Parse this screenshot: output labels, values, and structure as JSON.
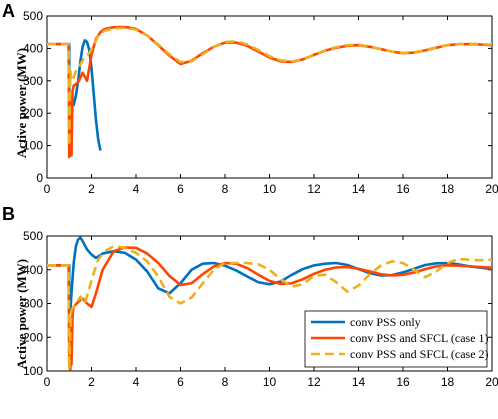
{
  "figure": {
    "panels": [
      "A",
      "B"
    ],
    "ylabel": "Active power (MW)"
  },
  "colors": {
    "conv_pss_only": "#0072BD",
    "conv_pss_sfcl_case1": "#FF4500",
    "conv_pss_sfcl_case2": "#EDB120"
  },
  "chart_data": [
    {
      "type": "line",
      "panel": "A",
      "title": "",
      "xlabel": "",
      "ylabel": "Active power (MW)",
      "xlim": [
        0,
        20
      ],
      "ylim": [
        0,
        500
      ],
      "xticks": [
        0,
        2,
        4,
        6,
        8,
        10,
        12,
        14,
        16,
        18,
        20
      ],
      "yticks": [
        0,
        100,
        200,
        300,
        400,
        500
      ],
      "grid": false,
      "legend": null,
      "series": [
        {
          "key": "conv_pss_only",
          "style": "solid",
          "x": [
            0,
            1.0,
            1.0,
            1.05,
            1.1,
            1.2,
            1.3,
            1.4,
            1.5,
            1.6,
            1.7,
            1.8,
            1.9,
            2.0,
            2.1,
            2.2,
            2.3,
            2.4
          ],
          "y": [
            413,
            413,
            100,
            240,
            225,
            225,
            255,
            300,
            360,
            405,
            425,
            420,
            395,
            340,
            260,
            180,
            120,
            85
          ]
        },
        {
          "key": "conv_pss_sfcl_case1",
          "style": "solid",
          "x": [
            0,
            0.97,
            1.0,
            1.02,
            1.05,
            1.08,
            1.1,
            1.15,
            1.2,
            1.4,
            1.6,
            1.8,
            2.0,
            2.2,
            2.4,
            2.6,
            2.8,
            3.0,
            3.3,
            3.6,
            4.0,
            4.5,
            5.0,
            5.5,
            6.0,
            6.5,
            7.0,
            7.5,
            8.0,
            8.5,
            9.0,
            9.5,
            10.0,
            10.5,
            11.0,
            11.5,
            12.0,
            12.5,
            13.0,
            13.5,
            14.0,
            14.5,
            15.0,
            15.5,
            16.0,
            16.5,
            17.0,
            17.5,
            18.0,
            18.5,
            19.0,
            19.5,
            20.0
          ],
          "y": [
            413,
            413,
            65,
            120,
            85,
            250,
            70,
            270,
            285,
            295,
            325,
            300,
            380,
            430,
            450,
            460,
            463,
            465,
            466,
            465,
            460,
            440,
            410,
            378,
            352,
            362,
            385,
            405,
            418,
            418,
            408,
            390,
            372,
            360,
            358,
            366,
            380,
            393,
            402,
            408,
            410,
            405,
            398,
            390,
            385,
            387,
            394,
            402,
            410,
            413,
            413,
            412,
            410
          ]
        },
        {
          "key": "conv_pss_sfcl_case2",
          "style": "dashed",
          "x": [
            0,
            0.97,
            1.0,
            1.05,
            1.1,
            1.2,
            1.3,
            1.5,
            1.7,
            1.9,
            2.1,
            2.3,
            2.6,
            3.0,
            3.5,
            4.0,
            4.5,
            5.0,
            5.5,
            6.0,
            6.5,
            7.0,
            7.5,
            8.0,
            8.5,
            9.0,
            9.5,
            10.0,
            10.5,
            11.0,
            11.5,
            12.0,
            12.5,
            13.0,
            13.5,
            14.0,
            14.5,
            15.0,
            15.5,
            16.0,
            16.5,
            17.0,
            17.5,
            18.0,
            18.5,
            19.0,
            19.5,
            20.0
          ],
          "y": [
            413,
            413,
            100,
            330,
            300,
            310,
            330,
            350,
            375,
            385,
            410,
            440,
            455,
            462,
            463,
            458,
            440,
            412,
            382,
            358,
            360,
            382,
            405,
            420,
            422,
            412,
            395,
            376,
            363,
            360,
            366,
            380,
            394,
            404,
            410,
            411,
            406,
            398,
            390,
            386,
            388,
            395,
            403,
            410,
            413,
            414,
            413,
            412
          ]
        }
      ]
    },
    {
      "type": "line",
      "panel": "B",
      "title": "",
      "xlabel": "",
      "ylabel": "Active power (MW)",
      "xlim": [
        0,
        20
      ],
      "ylim": [
        100,
        500
      ],
      "xticks": [
        0,
        2,
        4,
        6,
        8,
        10,
        12,
        14,
        16,
        18,
        20
      ],
      "yticks": [
        100,
        200,
        300,
        400,
        500
      ],
      "grid": false,
      "legend": {
        "placement": "bottom-right",
        "entries": [
          {
            "key": "conv_pss_only",
            "label": "conv PSS only"
          },
          {
            "key": "conv_pss_sfcl_case1",
            "label": "conv PSS and SFCL (case 1)"
          },
          {
            "key": "conv_pss_sfcl_case2",
            "label": "conv PSS and SFCL (case 2)"
          }
        ]
      },
      "series": [
        {
          "key": "conv_pss_only",
          "style": "solid",
          "x": [
            0,
            1.0,
            1.0,
            1.05,
            1.1,
            1.2,
            1.3,
            1.4,
            1.5,
            1.6,
            1.8,
            2.0,
            2.2,
            2.5,
            3.0,
            3.5,
            4.0,
            4.5,
            5.0,
            5.5,
            6.0,
            6.5,
            7.0,
            7.5,
            8.0,
            8.5,
            9.0,
            9.5,
            10.0,
            10.5,
            11.0,
            11.5,
            12.0,
            12.5,
            13.0,
            13.5,
            14.0,
            14.5,
            15.0,
            15.5,
            16.0,
            16.5,
            17.0,
            17.5,
            18.0,
            18.5,
            19.0,
            19.5,
            20.0
          ],
          "y": [
            413,
            413,
            300,
            280,
            330,
            420,
            470,
            490,
            495,
            485,
            460,
            445,
            435,
            448,
            455,
            450,
            430,
            395,
            345,
            330,
            360,
            400,
            418,
            420,
            412,
            398,
            380,
            363,
            357,
            365,
            385,
            402,
            413,
            418,
            420,
            414,
            402,
            390,
            383,
            384,
            392,
            403,
            414,
            419,
            420,
            416,
            410,
            406,
            402
          ]
        },
        {
          "key": "conv_pss_sfcl_case1",
          "style": "solid",
          "x": [
            0,
            0.97,
            1.0,
            1.02,
            1.05,
            1.08,
            1.1,
            1.15,
            1.2,
            1.4,
            1.6,
            1.8,
            2.0,
            2.2,
            2.5,
            3.0,
            3.5,
            4.0,
            4.5,
            5.0,
            5.5,
            6.0,
            6.5,
            7.0,
            7.5,
            8.0,
            8.5,
            9.0,
            9.5,
            10.0,
            10.5,
            11.0,
            11.5,
            12.0,
            12.5,
            13.0,
            13.5,
            14.0,
            14.5,
            15.0,
            15.5,
            16.0,
            16.5,
            17.0,
            17.5,
            18.0,
            18.5,
            19.0,
            19.5,
            20.0
          ],
          "y": [
            413,
            413,
            110,
            140,
            105,
            255,
            120,
            270,
            290,
            305,
            315,
            300,
            290,
            330,
            400,
            455,
            466,
            465,
            448,
            420,
            382,
            355,
            360,
            387,
            410,
            420,
            418,
            405,
            385,
            367,
            358,
            360,
            372,
            388,
            400,
            407,
            408,
            403,
            395,
            387,
            383,
            385,
            392,
            402,
            410,
            413,
            412,
            410,
            408,
            406
          ]
        },
        {
          "key": "conv_pss_sfcl_case2",
          "style": "dashed",
          "x": [
            0,
            0.97,
            1.0,
            1.05,
            1.1,
            1.2,
            1.3,
            1.5,
            1.7,
            1.9,
            2.1,
            2.3,
            2.6,
            3.0,
            3.5,
            4.0,
            4.5,
            5.0,
            5.5,
            6.0,
            6.5,
            7.0,
            7.5,
            8.0,
            8.5,
            9.0,
            9.5,
            10.0,
            10.5,
            11.0,
            11.5,
            12.0,
            12.5,
            13.0,
            13.5,
            14.0,
            14.5,
            15.0,
            15.5,
            16.0,
            16.5,
            17.0,
            17.5,
            18.0,
            18.5,
            19.0,
            19.5,
            20.0
          ],
          "y": [
            413,
            413,
            105,
            220,
            280,
            290,
            300,
            320,
            300,
            345,
            390,
            430,
            455,
            470,
            465,
            450,
            425,
            380,
            320,
            300,
            318,
            360,
            400,
            420,
            420,
            420,
            416,
            400,
            372,
            350,
            357,
            382,
            385,
            363,
            335,
            353,
            386,
            412,
            425,
            420,
            400,
            378,
            395,
            420,
            432,
            430,
            428,
            430
          ]
        }
      ]
    }
  ]
}
